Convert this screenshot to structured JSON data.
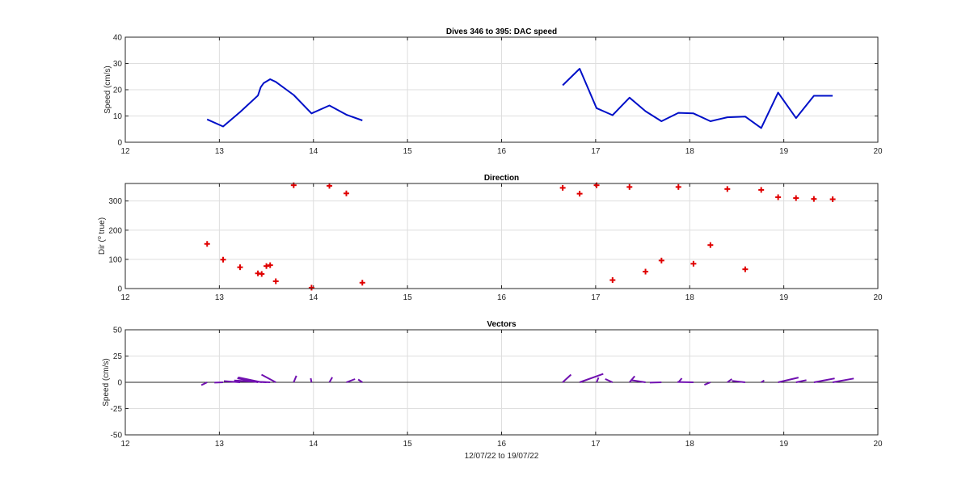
{
  "chart_data": [
    {
      "type": "line",
      "title": "Dives 346 to 395: DAC speed",
      "ylabel": "Speed (cm/s)",
      "xlabel": "",
      "xlim": [
        12,
        20
      ],
      "ylim": [
        0,
        40
      ],
      "xticks": [
        12,
        13,
        14,
        15,
        16,
        17,
        18,
        19,
        20
      ],
      "yticks": [
        0,
        10,
        20,
        30,
        40
      ],
      "grid": true,
      "color": "#0010c8",
      "series": [
        {
          "segments": [
            [
              [
                12.87,
                8.7
              ],
              [
                13.04,
                6.0
              ],
              [
                13.22,
                11.5
              ],
              [
                13.41,
                17.8
              ],
              [
                13.44,
                21.0
              ],
              [
                13.47,
                22.5
              ],
              [
                13.54,
                24.0
              ],
              [
                13.6,
                23.0
              ],
              [
                13.79,
                18.0
              ],
              [
                13.98,
                11.0
              ],
              [
                14.17,
                14.0
              ],
              [
                14.35,
                10.5
              ],
              [
                14.52,
                8.3
              ]
            ],
            [
              [
                16.65,
                21.7
              ],
              [
                16.83,
                28.0
              ],
              [
                17.01,
                13.0
              ],
              [
                17.18,
                10.3
              ],
              [
                17.36,
                17.0
              ],
              [
                17.53,
                11.8
              ],
              [
                17.7,
                8.0
              ],
              [
                17.88,
                11.2
              ],
              [
                18.04,
                11.0
              ],
              [
                18.22,
                8.0
              ],
              [
                18.4,
                9.5
              ],
              [
                18.59,
                9.8
              ],
              [
                18.76,
                5.4
              ],
              [
                18.94,
                18.9
              ],
              [
                19.13,
                9.2
              ],
              [
                19.32,
                17.7
              ],
              [
                19.52,
                17.7
              ]
            ]
          ]
        }
      ]
    },
    {
      "type": "scatter",
      "title": "Direction",
      "ylabel": "Dir (",
      "ylabel_sup": "o",
      "ylabel_tail": " true)",
      "xlim": [
        12,
        20
      ],
      "ylim": [
        0,
        360
      ],
      "xticks": [
        12,
        13,
        14,
        15,
        16,
        17,
        18,
        19,
        20
      ],
      "yticks": [
        0,
        100,
        200,
        300
      ],
      "grid": true,
      "color": "#e00000",
      "marker": "+",
      "points": [
        [
          12.87,
          153
        ],
        [
          13.04,
          99
        ],
        [
          13.22,
          73
        ],
        [
          13.41,
          52
        ],
        [
          13.45,
          50
        ],
        [
          13.5,
          77
        ],
        [
          13.54,
          80
        ],
        [
          13.6,
          25
        ],
        [
          13.79,
          354
        ],
        [
          13.98,
          3
        ],
        [
          14.17,
          352
        ],
        [
          14.35,
          326
        ],
        [
          14.52,
          20
        ],
        [
          16.65,
          345
        ],
        [
          16.83,
          325
        ],
        [
          17.01,
          354
        ],
        [
          17.18,
          29
        ],
        [
          17.36,
          348
        ],
        [
          17.53,
          58
        ],
        [
          17.7,
          96
        ],
        [
          17.88,
          348
        ],
        [
          18.04,
          85
        ],
        [
          18.22,
          149
        ],
        [
          18.4,
          341
        ],
        [
          18.59,
          66
        ],
        [
          18.76,
          338
        ],
        [
          18.94,
          313
        ],
        [
          19.13,
          310
        ],
        [
          19.32,
          307
        ],
        [
          19.52,
          306
        ]
      ]
    },
    {
      "type": "vector",
      "title": "Vectors",
      "ylabel": "Speed (cm/s)",
      "xlabel": "12/07/22 to 19/07/22",
      "xlim": [
        12,
        20
      ],
      "ylim": [
        -50,
        50
      ],
      "xticks": [
        12,
        13,
        14,
        15,
        16,
        17,
        18,
        19,
        20
      ],
      "yticks": [
        -50,
        -25,
        0,
        25,
        50
      ],
      "grid": true,
      "color": "#7010b0",
      "vectors": [
        [
          12.87,
          8.7,
          153
        ],
        [
          13.04,
          6.0,
          99
        ],
        [
          13.22,
          11.5,
          73
        ],
        [
          13.41,
          17.8,
          52
        ],
        [
          13.45,
          21.0,
          50
        ],
        [
          13.5,
          22.5,
          77
        ],
        [
          13.54,
          24.0,
          80
        ],
        [
          13.6,
          23.0,
          25
        ],
        [
          13.79,
          18.0,
          354
        ],
        [
          13.98,
          11.0,
          3
        ],
        [
          14.17,
          14.0,
          352
        ],
        [
          14.35,
          10.5,
          326
        ],
        [
          14.52,
          8.3,
          20
        ],
        [
          16.65,
          21.7,
          345
        ],
        [
          16.83,
          28.0,
          325
        ],
        [
          17.01,
          13.0,
          354
        ],
        [
          17.18,
          10.3,
          29
        ],
        [
          17.36,
          17.0,
          348
        ],
        [
          17.53,
          11.8,
          58
        ],
        [
          17.7,
          8.0,
          96
        ],
        [
          17.88,
          11.2,
          348
        ],
        [
          18.04,
          11.0,
          85
        ],
        [
          18.22,
          8.0,
          149
        ],
        [
          18.4,
          9.5,
          341
        ],
        [
          18.59,
          9.8,
          66
        ],
        [
          18.76,
          5.4,
          338
        ],
        [
          18.94,
          18.9,
          313
        ],
        [
          19.13,
          9.2,
          310
        ],
        [
          19.32,
          17.7,
          307
        ],
        [
          19.52,
          17.7,
          306
        ]
      ]
    }
  ]
}
